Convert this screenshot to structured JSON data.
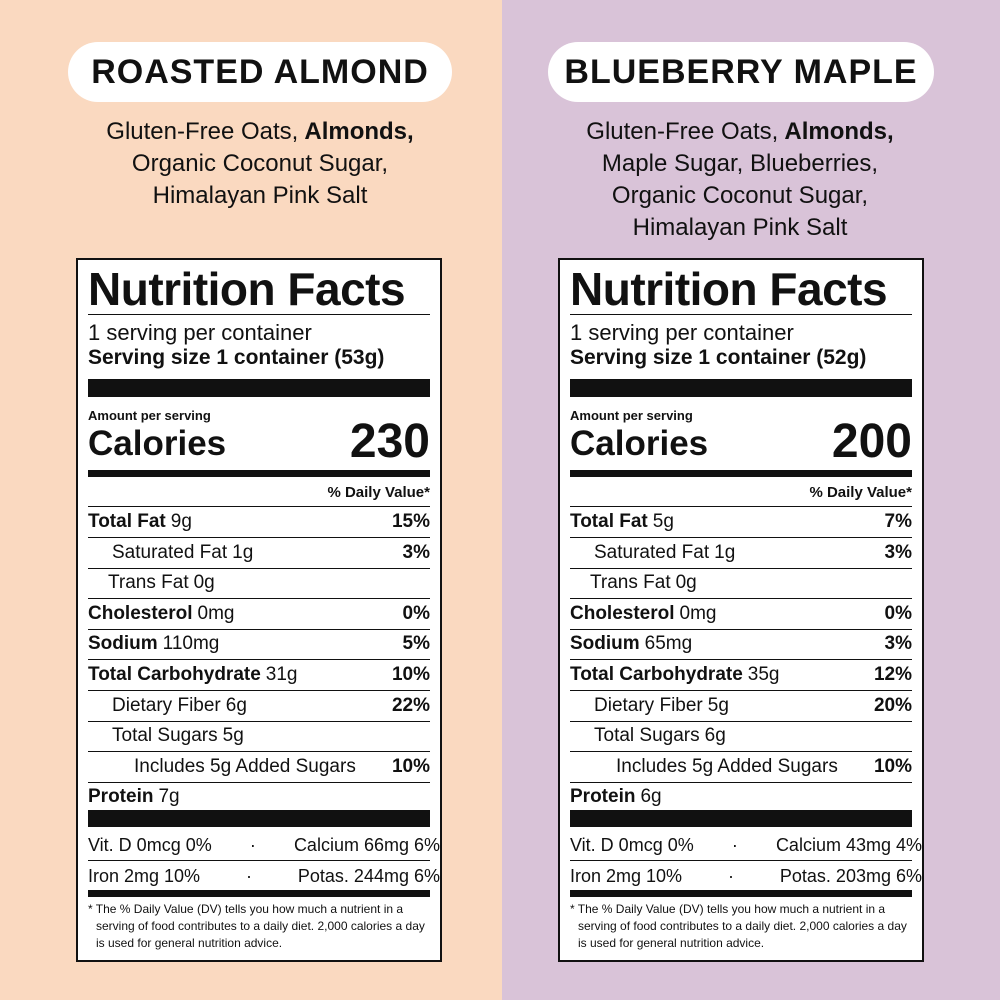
{
  "panels": [
    {
      "title": "ROASTED ALMOND",
      "ingredients": {
        "lead": "Gluten-Free Oats,",
        "highlight": "Almonds,",
        "lines": [
          "Organic Coconut Sugar,",
          "Himalayan Pink Salt"
        ]
      },
      "label": {
        "heading": "Nutrition Facts",
        "servings": "1 serving per container",
        "serving_size": "Serving size 1 container (53g)",
        "amount_per_serving": "Amount per serving",
        "calories_label": "Calories",
        "calories": "230",
        "dv_header": "% Daily Value*",
        "rows": [
          {
            "name": "Total Fat",
            "amount": "9g",
            "dv": "15%"
          },
          {
            "name": "Saturated Fat",
            "amount": "1g",
            "dv": "3%"
          },
          {
            "name": "Trans Fat",
            "amount": "0g"
          },
          {
            "name": "Cholesterol",
            "amount": "0mg",
            "dv": "0%"
          },
          {
            "name": "Sodium",
            "amount": "110mg",
            "dv": "5%"
          },
          {
            "name": "Total Carbohydrate",
            "amount": "31g",
            "dv": "10%"
          },
          {
            "name": "Dietary Fiber",
            "amount": "6g",
            "dv": "22%"
          },
          {
            "name": "Total Sugars",
            "amount": "5g"
          },
          {
            "name": "Includes 5g Added Sugars",
            "dv": "10%"
          },
          {
            "name": "Protein",
            "amount": "7g"
          }
        ],
        "micros": [
          [
            "Vit. D 0mcg 0%",
            "Calcium 66mg 6%"
          ],
          [
            "Iron 2mg 10%",
            "Potas. 244mg 6%"
          ]
        ],
        "footnote": "* The % Daily Value (DV) tells you how much a nutrient in a serving of food contributes to a daily diet. 2,000 calories a day is used for general nutrition advice."
      }
    },
    {
      "title": "BLUEBERRY MAPLE",
      "ingredients": {
        "lead": "Gluten-Free Oats,",
        "highlight": "Almonds,",
        "lines": [
          "Maple Sugar, Blueberries,",
          "Organic Coconut Sugar,",
          "Himalayan Pink Salt"
        ]
      },
      "label": {
        "heading": "Nutrition Facts",
        "servings": "1 serving per container",
        "serving_size": "Serving size 1 container (52g)",
        "amount_per_serving": "Amount per serving",
        "calories_label": "Calories",
        "calories": "200",
        "dv_header": "% Daily Value*",
        "rows": [
          {
            "name": "Total Fat",
            "amount": "5g",
            "dv": "7%"
          },
          {
            "name": "Saturated Fat",
            "amount": "1g",
            "dv": "3%"
          },
          {
            "name": "Trans Fat",
            "amount": "0g"
          },
          {
            "name": "Cholesterol",
            "amount": "0mg",
            "dv": "0%"
          },
          {
            "name": "Sodium",
            "amount": "65mg",
            "dv": "3%"
          },
          {
            "name": "Total Carbohydrate",
            "amount": "35g",
            "dv": "12%"
          },
          {
            "name": "Dietary Fiber",
            "amount": "5g",
            "dv": "20%"
          },
          {
            "name": "Total Sugars",
            "amount": "6g"
          },
          {
            "name": "Includes 5g Added Sugars",
            "dv": "10%"
          },
          {
            "name": "Protein",
            "amount": "6g"
          }
        ],
        "micros": [
          [
            "Vit. D 0mcg 0%",
            "Calcium 43mg 4%"
          ],
          [
            "Iron 2mg 10%",
            "Potas. 203mg 6%"
          ]
        ],
        "footnote": "* The % Daily Value (DV) tells you how much a nutrient in a serving of food contributes to a daily diet. 2,000 calories a day is used for general nutrition advice."
      }
    }
  ]
}
